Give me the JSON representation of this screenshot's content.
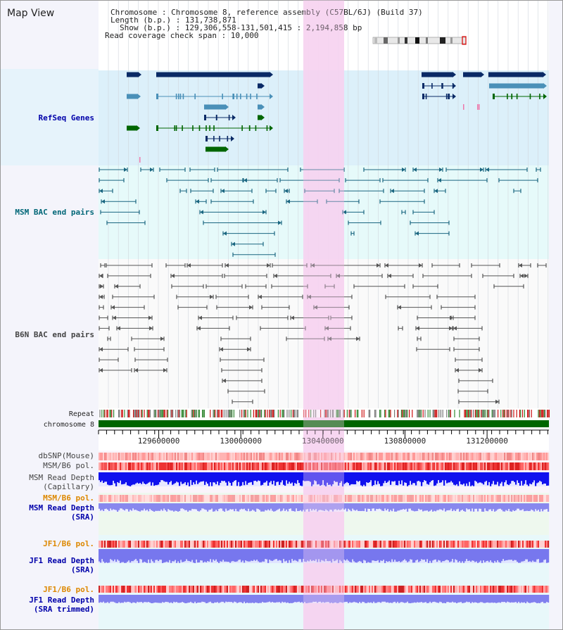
{
  "panel_title": "Map View",
  "info": {
    "line1": "Chromosome    : Chromosome 8, reference assembly (C57BL/6J) (Build 37)",
    "line2": "Length (b.p.) : 131,738,871",
    "line3": "Show (b.p.) : 129,306,558-131,501,415 : 2,194,858 bp",
    "line4": "Read coverage check span : 10,000"
  },
  "axis": {
    "ticks": [
      {
        "value": 129600000,
        "label": "129600000"
      },
      {
        "value": 130000000,
        "label": "130000000"
      },
      {
        "value": 130400000,
        "label": "130400000"
      },
      {
        "value": 130800000,
        "label": "130800000"
      },
      {
        "value": 131200000,
        "label": "131200000"
      }
    ],
    "show_start": 129306558,
    "show_end": 131501415
  },
  "tracks": {
    "refseq": "RefSeq Genes",
    "msm_bac": "MSM BAC end pairs",
    "b6n_bac": "B6N BAC end pairs",
    "repeat": "Repeat",
    "chromosome": "chromosome 8",
    "dbsnp": "dbSNP(Mouse)",
    "msm_pol_1": "MSM/B6 pol.",
    "msm_depth_cap_1": "MSM Read Depth",
    "msm_depth_cap_2": "(Capillary)",
    "msm_pol_2": "MSM/B6 pol.",
    "msm_depth_sra_1": "MSM Read Depth",
    "msm_depth_sra_2": "(SRA)",
    "jf1_pol_1": "JF1/B6 pol.",
    "jf1_depth_sra_1": "JF1 Read Depth",
    "jf1_depth_sra_2": "(SRA)",
    "jf1_pol_2": "JF1/B6 pol.",
    "jf1_depth_trim_1": "JF1 Read Depth",
    "jf1_depth_trim_2": "(SRA trimmed)"
  },
  "colors": {
    "label_black": "#222222",
    "label_blue": "#0000aa",
    "label_teal": "#006677",
    "label_gray": "#444444",
    "label_orange": "#dd8800",
    "refseq_bg": "#dcf0fa",
    "msm_bg": "#e6fafa",
    "b6n_bg": "#fafafa",
    "highlight": "#f7d2f0",
    "chromosome": "#006600",
    "gene_dark": "#0a2a66",
    "gene_mid": "#4a90b8",
    "gene_green": "#006600"
  }
}
